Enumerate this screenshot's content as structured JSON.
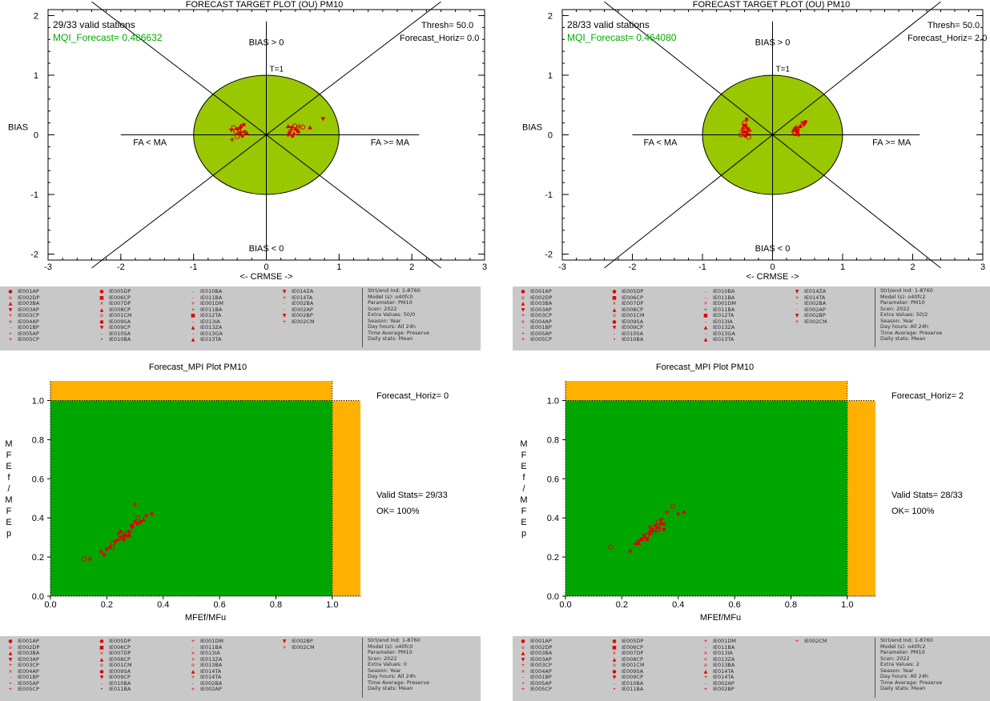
{
  "colors": {
    "target_fill": "#99c700",
    "mpi_green": "#00a600",
    "mpi_orange": "#ffb000",
    "point": "#e00000",
    "mqi_text": "#00aa00"
  },
  "target_plots": [
    {
      "title": "FORECAST TARGET PLOT (OU)   PM10",
      "valid_stations": "29/33 valid stations",
      "mqi": "MQI_Forecast= 0.486632",
      "thresh": "Thresh= 50.0",
      "horiz": "Forecast_Horiz= 0.0",
      "points": [
        [
          -0.45,
          0.12
        ],
        [
          -0.4,
          0.1
        ],
        [
          -0.35,
          0.15
        ],
        [
          -0.48,
          0.08
        ],
        [
          -0.3,
          0.05
        ],
        [
          -0.38,
          0.02
        ],
        [
          -0.42,
          0.06
        ],
        [
          -0.33,
          -0.02
        ],
        [
          -0.27,
          0.03
        ],
        [
          -0.36,
          0.1
        ],
        [
          -0.31,
          0.17
        ],
        [
          -0.47,
          -0.08
        ],
        [
          -0.4,
          -0.03
        ],
        [
          -0.35,
          0.04
        ],
        [
          0.3,
          0.14
        ],
        [
          0.35,
          0.12
        ],
        [
          0.4,
          0.1
        ],
        [
          0.45,
          0.14
        ],
        [
          0.5,
          0.13
        ],
        [
          0.32,
          0.04
        ],
        [
          0.38,
          0.02
        ],
        [
          0.42,
          0.07
        ],
        [
          0.36,
          -0.02
        ],
        [
          0.34,
          0.08
        ],
        [
          0.39,
          0.15
        ],
        [
          0.3,
          0.0
        ],
        [
          0.6,
          0.12
        ],
        [
          0.78,
          0.27
        ],
        [
          0.44,
          0.05
        ]
      ]
    },
    {
      "title": "FORECAST TARGET PLOT (OU)   PM10",
      "valid_stations": "28/33 valid stations",
      "mqi": "MQI_Forecast= 0.464080",
      "thresh": "Thresh= 50.0",
      "horiz": "Forecast_Horiz= 2.0",
      "points": [
        [
          -0.4,
          0.2
        ],
        [
          -0.38,
          0.15
        ],
        [
          -0.42,
          0.12
        ],
        [
          -0.36,
          0.1
        ],
        [
          -0.4,
          0.05
        ],
        [
          -0.35,
          0.02
        ],
        [
          -0.45,
          0.0
        ],
        [
          -0.39,
          -0.02
        ],
        [
          -0.33,
          0.08
        ],
        [
          -0.41,
          0.16
        ],
        [
          -0.37,
          0.26
        ],
        [
          -0.43,
          0.07
        ],
        [
          -0.34,
          -0.04
        ],
        [
          -0.38,
          0.04
        ],
        [
          0.3,
          0.08
        ],
        [
          0.33,
          0.1
        ],
        [
          0.35,
          0.05
        ],
        [
          0.38,
          0.12
        ],
        [
          0.32,
          0.02
        ],
        [
          0.36,
          0.06
        ],
        [
          0.4,
          0.15
        ],
        [
          0.43,
          0.2
        ],
        [
          0.47,
          0.22
        ],
        [
          0.34,
          0.13
        ],
        [
          0.31,
          0.04
        ],
        [
          0.37,
          0.0
        ],
        [
          0.35,
          0.09
        ],
        [
          0.45,
          0.17
        ]
      ]
    }
  ],
  "target_axes": {
    "xticks": [
      "-3",
      "-2",
      "-1",
      "0",
      "1",
      "2",
      "3"
    ],
    "yticks": [
      "2",
      "1",
      "0",
      "-1",
      "-2"
    ],
    "bias_gt": "BIAS > 0",
    "bias_lt": "BIAS < 0",
    "t1": "T=1",
    "fa_lt": "FA < MA",
    "fa_ge": "FA >= MA",
    "ylabel": "BIAS",
    "xlabel": "<- CRMSE ->"
  },
  "mpi_plots": [
    {
      "title": "Forecast_MPI Plot  PM10",
      "horiz": "Forecast_Horiz= 0",
      "valid": "Valid Stats= 29/33",
      "ok": "OK= 100%",
      "points": [
        [
          0.12,
          0.19
        ],
        [
          0.14,
          0.19
        ],
        [
          0.18,
          0.23
        ],
        [
          0.19,
          0.21
        ],
        [
          0.2,
          0.24
        ],
        [
          0.21,
          0.25
        ],
        [
          0.22,
          0.27
        ],
        [
          0.23,
          0.28
        ],
        [
          0.24,
          0.29
        ],
        [
          0.25,
          0.3
        ],
        [
          0.25,
          0.33
        ],
        [
          0.26,
          0.31
        ],
        [
          0.27,
          0.32
        ],
        [
          0.28,
          0.33
        ],
        [
          0.28,
          0.31
        ],
        [
          0.29,
          0.36
        ],
        [
          0.3,
          0.38
        ],
        [
          0.3,
          0.47
        ],
        [
          0.31,
          0.4
        ],
        [
          0.32,
          0.38
        ],
        [
          0.33,
          0.39
        ],
        [
          0.34,
          0.41
        ],
        [
          0.36,
          0.42
        ],
        [
          0.24,
          0.32
        ],
        [
          0.22,
          0.25
        ],
        [
          0.26,
          0.29
        ],
        [
          0.27,
          0.31
        ],
        [
          0.29,
          0.35
        ],
        [
          0.31,
          0.37
        ]
      ]
    },
    {
      "title": "Forecast_MPI Plot  PM10",
      "horiz": "Forecast_Horiz= 2",
      "valid": "Valid Stats= 28/33",
      "ok": "OK= 100%",
      "points": [
        [
          0.16,
          0.25
        ],
        [
          0.23,
          0.23
        ],
        [
          0.25,
          0.27
        ],
        [
          0.26,
          0.28
        ],
        [
          0.27,
          0.29
        ],
        [
          0.28,
          0.3
        ],
        [
          0.29,
          0.31
        ],
        [
          0.3,
          0.33
        ],
        [
          0.3,
          0.32
        ],
        [
          0.31,
          0.34
        ],
        [
          0.32,
          0.36
        ],
        [
          0.32,
          0.33
        ],
        [
          0.33,
          0.38
        ],
        [
          0.33,
          0.35
        ],
        [
          0.34,
          0.37
        ],
        [
          0.34,
          0.39
        ],
        [
          0.35,
          0.34
        ],
        [
          0.36,
          0.43
        ],
        [
          0.38,
          0.46
        ],
        [
          0.4,
          0.42
        ],
        [
          0.42,
          0.43
        ],
        [
          0.28,
          0.31
        ],
        [
          0.29,
          0.29
        ],
        [
          0.31,
          0.33
        ],
        [
          0.33,
          0.34
        ],
        [
          0.35,
          0.37
        ],
        [
          0.26,
          0.27
        ],
        [
          0.3,
          0.35
        ]
      ]
    }
  ],
  "mpi_axes": {
    "xticks": [
      "0.0",
      "0.2",
      "0.4",
      "0.6",
      "0.8",
      "1.0"
    ],
    "yticks": [
      "1.0",
      "0.8",
      "0.6",
      "0.4",
      "0.2",
      "0.0"
    ],
    "xlabel": "MFEf/MFu",
    "ylabel_chars": [
      "M",
      "F",
      "E",
      "f",
      "/",
      "M",
      "F",
      "E",
      "p"
    ]
  },
  "legends": [
    {
      "cols": [
        [
          [
            "●",
            "IE001AP"
          ],
          [
            "o",
            "IE002DP"
          ],
          [
            "▲",
            "IE003BA"
          ],
          [
            "▼",
            "IE003AP"
          ],
          [
            "+",
            "IE003CP"
          ],
          [
            "×",
            "IE004AP"
          ],
          [
            "-",
            "IE001BP"
          ],
          [
            "•",
            "IE005AP"
          ],
          [
            "+",
            "IE005CP"
          ]
        ],
        [
          [
            "●",
            "IE005DP"
          ],
          [
            "■",
            "IE006CP"
          ],
          [
            "×",
            "IE007DP"
          ],
          [
            "▲",
            "IE008CP"
          ],
          [
            "o",
            "IE001CM"
          ],
          [
            "●",
            "IE009SA"
          ],
          [
            "▼",
            "IE009CP"
          ],
          [
            "-",
            "IE010SA"
          ],
          [
            "•",
            "IE010BA"
          ]
        ],
        [
          [
            "-",
            "IE010BA"
          ],
          [
            "-",
            "IE011BA"
          ],
          [
            "+",
            "IE001DM"
          ],
          [
            "+",
            "IE011BA"
          ],
          [
            "■",
            "IE012TA"
          ],
          [
            "-",
            "IE013IA"
          ],
          [
            "▲",
            "IE013ZA"
          ],
          [
            "-",
            "IE013GA"
          ],
          [
            "▲",
            "IE013TA"
          ]
        ],
        [
          [
            "▼",
            "IE014ZA"
          ],
          [
            "+",
            "IE014TA"
          ],
          [
            "-",
            "IE002BA"
          ],
          [
            "-",
            "IE002AP"
          ],
          [
            "▼",
            "IE002BP"
          ],
          [
            "+",
            "IE002CM"
          ]
        ]
      ],
      "info": [
        "Strt/end Ind: 1-8760",
        "Model (s): o40fc0",
        "Parameter: PM10",
        "Scen: 2022",
        "Extra Values: 50/0",
        "Season: Year",
        "Day hours: All 24h",
        "Time Average: Preserve",
        "Daily stats: Mean"
      ]
    },
    {
      "cols": [
        [
          [
            "●",
            "IE001AP"
          ],
          [
            "o",
            "IE002DP"
          ],
          [
            "▲",
            "IE003BA"
          ],
          [
            "▼",
            "IE003AP"
          ],
          [
            "+",
            "IE003CP"
          ],
          [
            "×",
            "IE004AP"
          ],
          [
            "-",
            "IE001BP"
          ],
          [
            "•",
            "IE005AP"
          ],
          [
            "+",
            "IE005CP"
          ]
        ],
        [
          [
            "●",
            "IE005DP"
          ],
          [
            "■",
            "IE006CP"
          ],
          [
            "×",
            "IE007DP"
          ],
          [
            "▲",
            "IE008CP"
          ],
          [
            "o",
            "IE001CM"
          ],
          [
            "●",
            "IE009SA"
          ],
          [
            "▼",
            "IE009CP"
          ],
          [
            "-",
            "IE010SA"
          ],
          [
            "•",
            "IE010BA"
          ]
        ],
        [
          [
            "-",
            "IE010BA"
          ],
          [
            "-",
            "IE011BA"
          ],
          [
            "+",
            "IE001DM"
          ],
          [
            "+",
            "IE011BA"
          ],
          [
            "■",
            "IE012TA"
          ],
          [
            "-",
            "IE013IA"
          ],
          [
            "▲",
            "IE013ZA"
          ],
          [
            "-",
            "IE013GA"
          ],
          [
            "▲",
            "IE013TA"
          ]
        ],
        [
          [
            "▼",
            "IE014ZA"
          ],
          [
            "+",
            "IE014TA"
          ],
          [
            "-",
            "IE002BA"
          ],
          [
            "-",
            "IE002AP"
          ],
          [
            "▼",
            "IE002BP"
          ],
          [
            "+",
            "IE002CM"
          ]
        ]
      ],
      "info": [
        "Strt/end Ind: 1-8760",
        "Model (s): o40fc2",
        "Parameter: PM10",
        "Scen: 2022",
        "Extra Values: 50/2",
        "Season: Year",
        "Day hours: All 24h",
        "Time Average: Preserve",
        "Daily stats: Mean"
      ]
    },
    {
      "cols": [
        [
          [
            "●",
            "IE001AP"
          ],
          [
            "o",
            "IE002DP"
          ],
          [
            "▲",
            "IE003BA"
          ],
          [
            "▼",
            "IE003AP"
          ],
          [
            "+",
            "IE003CP"
          ],
          [
            "×",
            "IE004AP"
          ],
          [
            "-",
            "IE001BP"
          ],
          [
            "•",
            "IE005AP"
          ],
          [
            "+",
            "IE005CP"
          ]
        ],
        [
          [
            "●",
            "IE005DP"
          ],
          [
            "■",
            "IE006CP"
          ],
          [
            "×",
            "IE007DP"
          ],
          [
            "▲",
            "IE008CP"
          ],
          [
            "o",
            "IE001CM"
          ],
          [
            "●",
            "IE009SA"
          ],
          [
            "▼",
            "IE009CP"
          ],
          [
            "-",
            "IE010BA"
          ],
          [
            "•",
            "IE011BA"
          ]
        ],
        [
          [
            "+",
            "IE001DM"
          ],
          [
            "-",
            "IE011BA"
          ],
          [
            "×",
            "IE013IA"
          ],
          [
            "+",
            "IE013ZA"
          ],
          [
            "o",
            "IE013BA"
          ],
          [
            "▲",
            "IE014TA"
          ],
          [
            "+",
            "IE014TA"
          ],
          [
            "-",
            "IE002BA"
          ],
          [
            "+",
            "IE002AP"
          ]
        ],
        [
          [
            "▼",
            "IE002BP"
          ],
          [
            "+",
            "IE002CM"
          ]
        ]
      ],
      "info": [
        "Strt/end Ind: 1-8760",
        "Model (s): o40fc0",
        "Parameter: PM10",
        "Scen: 2022",
        "Extra Values: 0",
        "Season: Year",
        "Day hours: All 24h",
        "Time Average: Preserve",
        "Daily stats: Mean"
      ]
    },
    {
      "cols": [
        [
          [
            "●",
            "IE001AP"
          ],
          [
            "o",
            "IE002DP"
          ],
          [
            "▲",
            "IE003BA"
          ],
          [
            "▼",
            "IE003AP"
          ],
          [
            "+",
            "IE003CP"
          ],
          [
            "×",
            "IE004AP"
          ],
          [
            "-",
            "IE001BP"
          ],
          [
            "•",
            "IE005AP"
          ],
          [
            "+",
            "IE005CP"
          ]
        ],
        [
          [
            "●",
            "IE005DP"
          ],
          [
            "■",
            "IE006CP"
          ],
          [
            "×",
            "IE007DP"
          ],
          [
            "▲",
            "IE008CP"
          ],
          [
            "o",
            "IE001CM"
          ],
          [
            "●",
            "IE009SA"
          ],
          [
            "▼",
            "IE009CP"
          ],
          [
            "-",
            "IE010BA"
          ],
          [
            "•",
            "IE011BA"
          ]
        ],
        [
          [
            "+",
            "IE001DM"
          ],
          [
            "-",
            "IE011BA"
          ],
          [
            "×",
            "IE013IA"
          ],
          [
            "+",
            "IE013ZA"
          ],
          [
            "o",
            "IE013BA"
          ],
          [
            "▲",
            "IE014TA"
          ],
          [
            "+",
            "IE014TA"
          ],
          [
            "-",
            "IE002AP"
          ],
          [
            "+",
            "IE002BP"
          ]
        ],
        [
          [
            "+",
            "IE002CM"
          ]
        ]
      ],
      "info": [
        "Strt/end Ind: 1-8760",
        "Model (s): o40fc2",
        "Parameter: PM10",
        "Scen: 2022",
        "Extra Values: 2",
        "Season: Year",
        "Day hours: All 24h",
        "Time Average: Preserve",
        "Daily stats: Mean"
      ]
    }
  ],
  "chart_data": [
    {
      "type": "scatter",
      "title": "FORECAST TARGET PLOT (OU)   PM10",
      "xlabel": "<- CRMSE ->",
      "ylabel": "BIAS",
      "xlim": [
        -3,
        3
      ],
      "ylim": [
        -2.1,
        2.1
      ],
      "note": "Forecast_Horiz= 0.0"
    },
    {
      "type": "scatter",
      "title": "FORECAST TARGET PLOT (OU)   PM10",
      "xlabel": "<- CRMSE ->",
      "ylabel": "BIAS",
      "xlim": [
        -3,
        3
      ],
      "ylim": [
        -2.1,
        2.1
      ],
      "note": "Forecast_Horiz= 2.0"
    },
    {
      "type": "scatter",
      "title": "Forecast_MPI Plot  PM10",
      "xlabel": "MFEf/MFu",
      "ylabel": "MFEf/MFEp",
      "xlim": [
        0,
        1.1
      ],
      "ylim": [
        0,
        1.1
      ],
      "note": "Forecast_Horiz= 0"
    },
    {
      "type": "scatter",
      "title": "Forecast_MPI Plot  PM10",
      "xlabel": "MFEf/MFu",
      "ylabel": "MFEf/MFEp",
      "xlim": [
        0,
        1.1
      ],
      "ylim": [
        0,
        1.1
      ],
      "note": "Forecast_Horiz= 2"
    }
  ]
}
